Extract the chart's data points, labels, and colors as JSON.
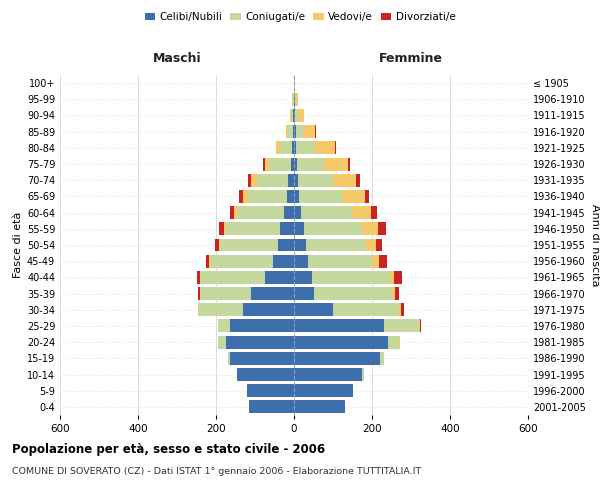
{
  "age_groups": [
    "0-4",
    "5-9",
    "10-14",
    "15-19",
    "20-24",
    "25-29",
    "30-34",
    "35-39",
    "40-44",
    "45-49",
    "50-54",
    "55-59",
    "60-64",
    "65-69",
    "70-74",
    "75-79",
    "80-84",
    "85-89",
    "90-94",
    "95-99",
    "100+"
  ],
  "birth_years": [
    "2001-2005",
    "1996-2000",
    "1991-1995",
    "1986-1990",
    "1981-1985",
    "1976-1980",
    "1971-1975",
    "1966-1970",
    "1961-1965",
    "1956-1960",
    "1951-1955",
    "1946-1950",
    "1941-1945",
    "1936-1940",
    "1931-1935",
    "1926-1930",
    "1921-1925",
    "1916-1920",
    "1911-1915",
    "1906-1910",
    "≤ 1905"
  ],
  "males": {
    "celibe": [
      115,
      120,
      145,
      165,
      175,
      165,
      130,
      110,
      75,
      55,
      40,
      35,
      25,
      18,
      15,
      8,
      5,
      3,
      2,
      1,
      0
    ],
    "coniugato": [
      0,
      0,
      2,
      5,
      20,
      30,
      115,
      130,
      165,
      160,
      150,
      140,
      120,
      100,
      80,
      55,
      30,
      12,
      5,
      3,
      1
    ],
    "vedovo": [
      0,
      0,
      0,
      0,
      0,
      0,
      0,
      1,
      1,
      2,
      3,
      5,
      8,
      12,
      15,
      12,
      10,
      5,
      2,
      1,
      0
    ],
    "divorziato": [
      0,
      0,
      0,
      0,
      0,
      1,
      2,
      5,
      8,
      8,
      10,
      12,
      12,
      10,
      8,
      5,
      1,
      0,
      0,
      0,
      0
    ]
  },
  "females": {
    "nubile": [
      130,
      150,
      175,
      220,
      240,
      230,
      100,
      50,
      45,
      35,
      30,
      25,
      18,
      12,
      10,
      8,
      5,
      5,
      3,
      2,
      0
    ],
    "coniugata": [
      0,
      1,
      4,
      12,
      30,
      90,
      170,
      200,
      200,
      165,
      155,
      150,
      130,
      110,
      90,
      70,
      50,
      20,
      8,
      3,
      1
    ],
    "vedova": [
      0,
      0,
      0,
      0,
      1,
      2,
      5,
      8,
      12,
      18,
      25,
      40,
      50,
      60,
      60,
      60,
      50,
      30,
      15,
      4,
      1
    ],
    "divorziata": [
      0,
      0,
      0,
      0,
      1,
      3,
      8,
      12,
      20,
      20,
      15,
      20,
      15,
      10,
      8,
      5,
      2,
      1,
      0,
      0,
      0
    ]
  },
  "colors": {
    "celibe": "#3d6fad",
    "coniugato": "#c5d89e",
    "vedovo": "#f5c96a",
    "divorziato": "#cc2222"
  },
  "xlim": 600,
  "title": "Popolazione per età, sesso e stato civile - 2006",
  "subtitle": "COMUNE DI SOVERATO (CZ) - Dati ISTAT 1° gennaio 2006 - Elaborazione TUTTITALIA.IT",
  "xlabel_left": "Maschi",
  "xlabel_right": "Femmine",
  "ylabel_left": "Fasce di età",
  "ylabel_right": "Anni di nascita",
  "legend_labels": [
    "Celibi/Nubili",
    "Coniugati/e",
    "Vedovi/e",
    "Divorziati/e"
  ],
  "background_color": "#ffffff",
  "grid_color": "#cccccc"
}
